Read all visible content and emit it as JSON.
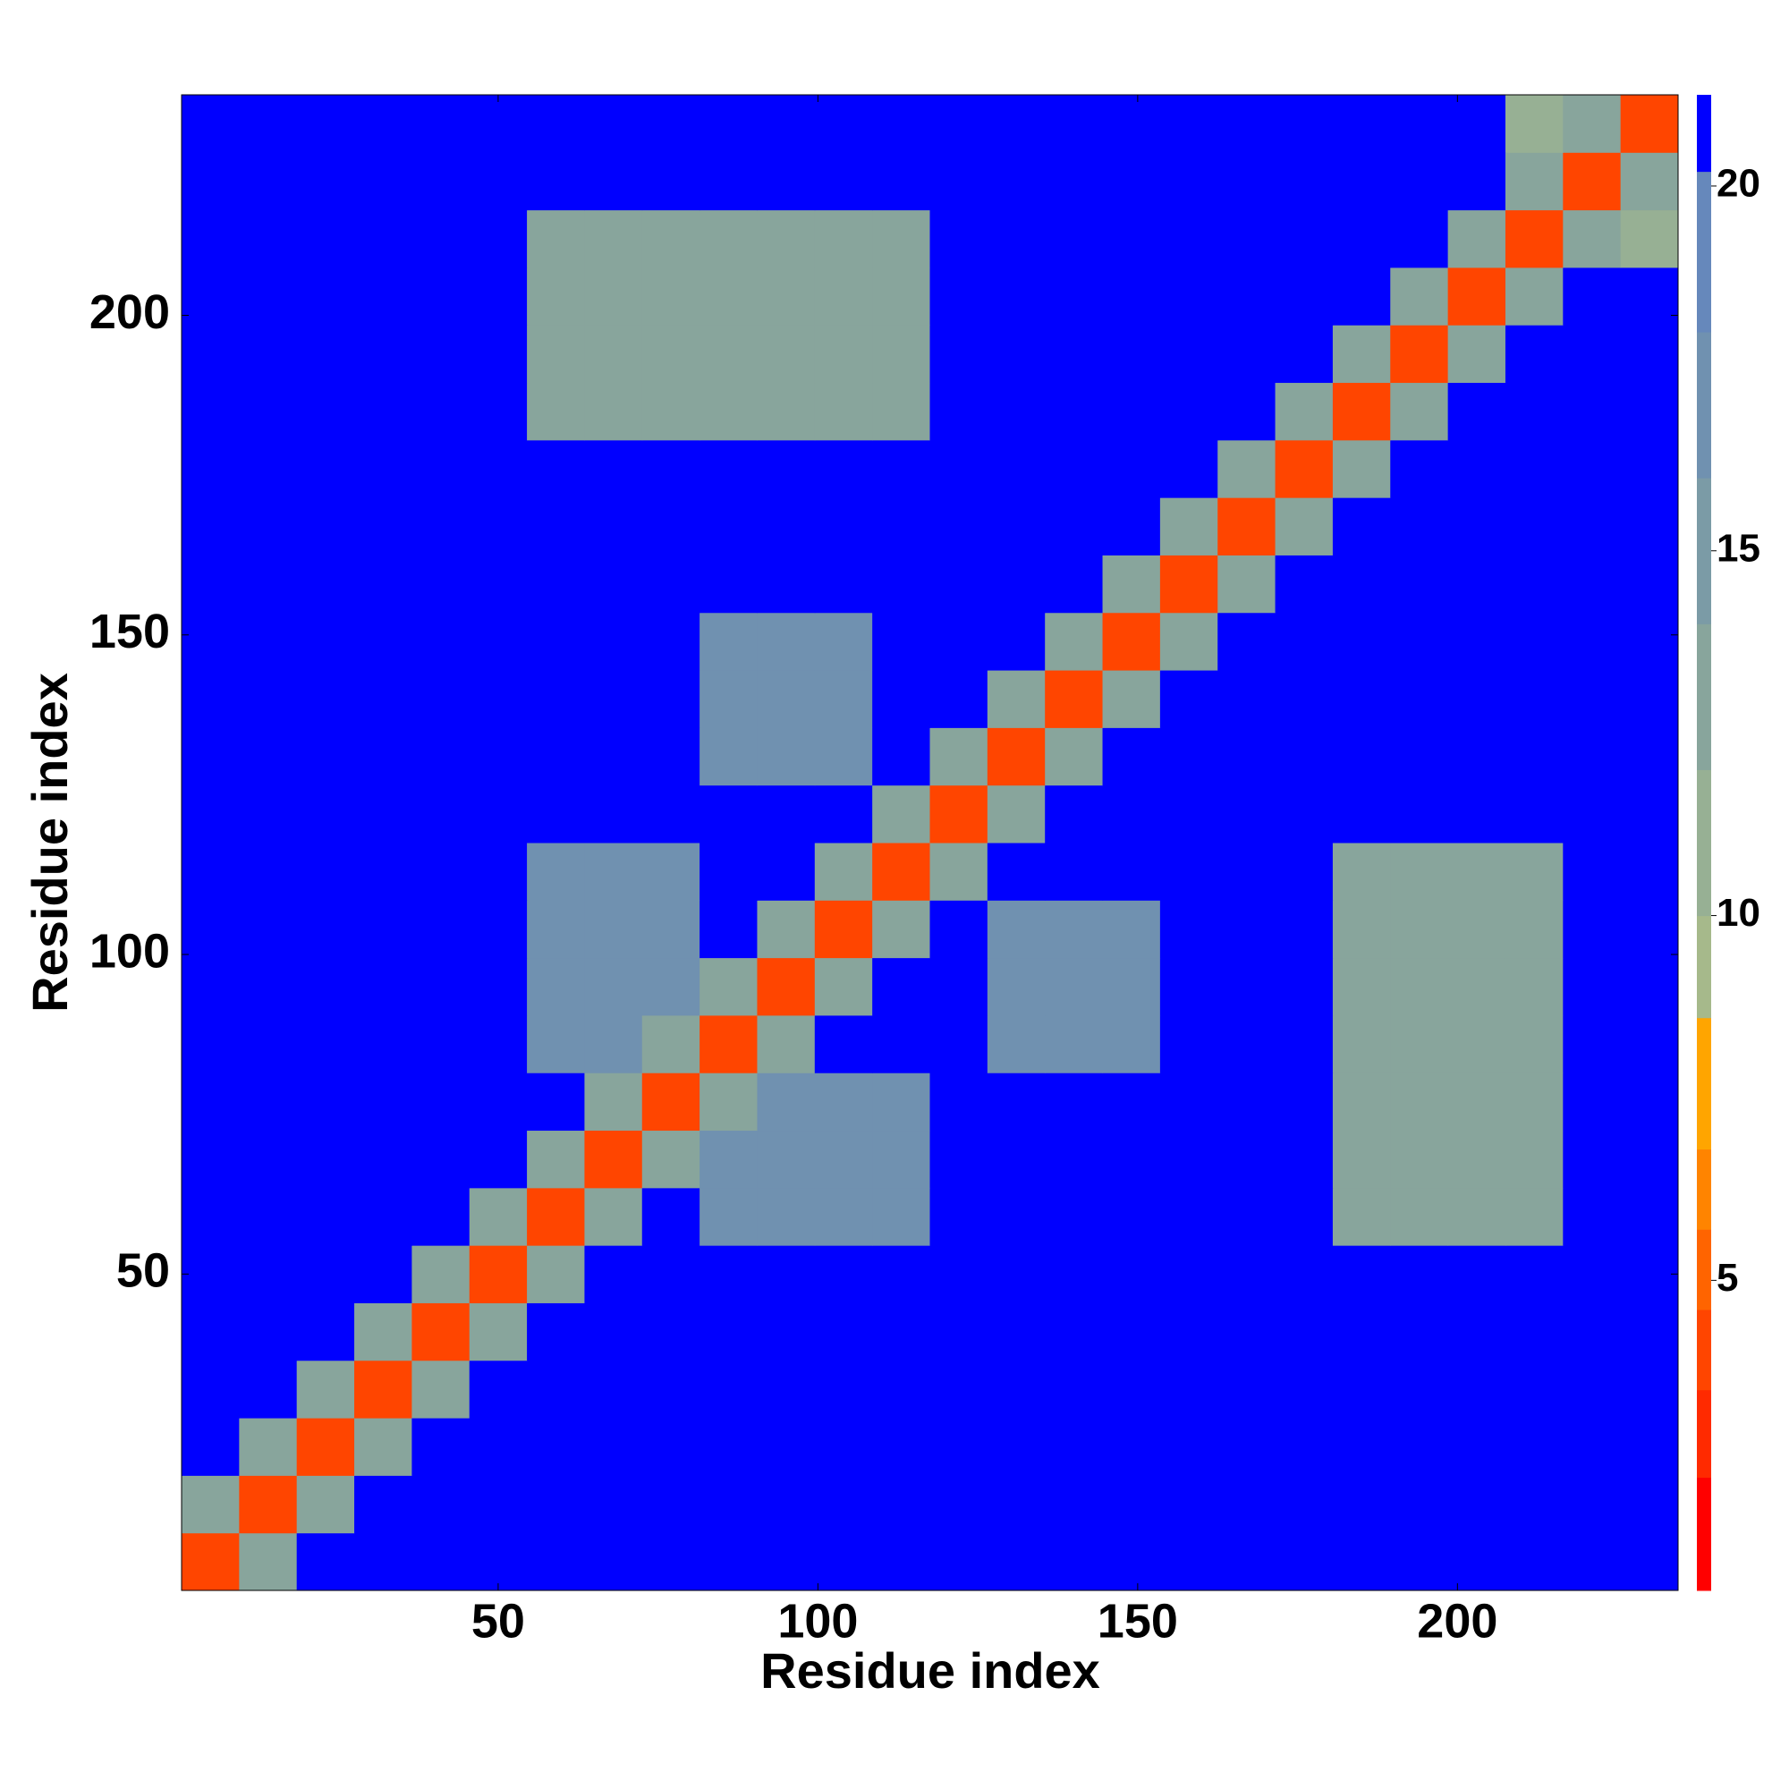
{
  "chart_data": {
    "type": "heatmap",
    "xlabel": "Residue index",
    "ylabel": "Residue index",
    "x": [
      5,
      14,
      23,
      32,
      41,
      50,
      59,
      68,
      77,
      86,
      95,
      104,
      113,
      122,
      131,
      140,
      149,
      158,
      167,
      176,
      185,
      194,
      203,
      212,
      221,
      230
    ],
    "y": [
      5,
      14,
      23,
      32,
      41,
      50,
      59,
      68,
      77,
      86,
      95,
      104,
      113,
      122,
      131,
      140,
      149,
      158,
      167,
      176,
      185,
      194,
      203,
      212,
      221,
      230
    ],
    "z": [
      [
        4,
        13,
        21,
        21,
        21,
        21,
        21,
        21,
        21,
        21,
        21,
        21,
        21,
        21,
        21,
        21,
        21,
        21,
        21,
        21,
        21,
        21,
        21,
        21,
        21,
        21
      ],
      [
        13,
        4,
        13,
        21,
        21,
        21,
        21,
        21,
        21,
        21,
        21,
        21,
        21,
        21,
        21,
        21,
        21,
        21,
        21,
        21,
        21,
        21,
        21,
        21,
        21,
        21
      ],
      [
        21,
        13,
        4,
        13,
        21,
        21,
        21,
        21,
        21,
        21,
        21,
        21,
        21,
        21,
        21,
        21,
        21,
        21,
        21,
        21,
        21,
        21,
        21,
        21,
        21,
        21
      ],
      [
        21,
        21,
        13,
        4,
        13,
        21,
        21,
        21,
        21,
        21,
        21,
        21,
        21,
        21,
        21,
        21,
        21,
        21,
        21,
        21,
        21,
        21,
        21,
        21,
        21,
        21
      ],
      [
        21,
        21,
        21,
        13,
        4,
        13,
        21,
        21,
        21,
        21,
        21,
        21,
        21,
        21,
        21,
        21,
        21,
        21,
        21,
        21,
        21,
        21,
        21,
        21,
        21,
        21
      ],
      [
        21,
        21,
        21,
        21,
        13,
        4,
        13,
        21,
        21,
        21,
        21,
        21,
        21,
        21,
        21,
        21,
        21,
        21,
        21,
        21,
        21,
        21,
        21,
        21,
        21,
        21
      ],
      [
        21,
        21,
        21,
        21,
        21,
        13,
        4,
        13,
        21,
        17,
        17,
        17,
        17,
        21,
        21,
        21,
        21,
        21,
        21,
        21,
        13,
        13,
        13,
        13,
        21,
        21
      ],
      [
        21,
        21,
        21,
        21,
        21,
        21,
        13,
        4,
        13,
        17,
        17,
        17,
        17,
        21,
        21,
        21,
        21,
        21,
        21,
        21,
        13,
        13,
        13,
        13,
        21,
        21
      ],
      [
        21,
        21,
        21,
        21,
        21,
        21,
        21,
        13,
        4,
        13,
        17,
        17,
        17,
        21,
        21,
        21,
        21,
        21,
        21,
        21,
        13,
        13,
        13,
        13,
        21,
        21
      ],
      [
        21,
        21,
        21,
        21,
        21,
        21,
        17,
        17,
        13,
        4,
        13,
        21,
        21,
        21,
        18,
        18,
        18,
        21,
        21,
        21,
        14,
        14,
        14,
        14,
        21,
        21
      ],
      [
        21,
        21,
        21,
        21,
        21,
        21,
        17,
        17,
        17,
        13,
        4,
        13,
        21,
        21,
        18,
        18,
        18,
        21,
        21,
        21,
        14,
        14,
        14,
        14,
        21,
        21
      ],
      [
        21,
        21,
        21,
        21,
        21,
        21,
        17,
        17,
        17,
        21,
        13,
        4,
        13,
        21,
        18,
        18,
        18,
        21,
        21,
        21,
        14,
        14,
        14,
        14,
        21,
        21
      ],
      [
        21,
        21,
        21,
        21,
        21,
        21,
        17,
        17,
        17,
        21,
        21,
        13,
        4,
        13,
        21,
        21,
        21,
        21,
        21,
        21,
        14,
        14,
        14,
        14,
        21,
        21
      ],
      [
        21,
        21,
        21,
        21,
        21,
        21,
        21,
        21,
        21,
        21,
        21,
        21,
        13,
        4,
        13,
        21,
        21,
        21,
        21,
        21,
        21,
        21,
        21,
        21,
        21,
        21
      ],
      [
        21,
        21,
        21,
        21,
        21,
        21,
        21,
        21,
        21,
        18,
        18,
        18,
        21,
        13,
        4,
        13,
        21,
        21,
        21,
        21,
        21,
        21,
        21,
        21,
        21,
        21
      ],
      [
        21,
        21,
        21,
        21,
        21,
        21,
        21,
        21,
        21,
        18,
        18,
        18,
        21,
        21,
        13,
        4,
        13,
        21,
        21,
        21,
        21,
        21,
        21,
        21,
        21,
        21
      ],
      [
        21,
        21,
        21,
        21,
        21,
        21,
        21,
        21,
        21,
        18,
        18,
        18,
        21,
        21,
        21,
        13,
        4,
        13,
        21,
        21,
        21,
        21,
        21,
        21,
        21,
        21
      ],
      [
        21,
        21,
        21,
        21,
        21,
        21,
        21,
        21,
        21,
        21,
        21,
        21,
        21,
        21,
        21,
        21,
        13,
        4,
        13,
        21,
        21,
        21,
        21,
        21,
        21,
        21
      ],
      [
        21,
        21,
        21,
        21,
        21,
        21,
        21,
        21,
        21,
        21,
        21,
        21,
        21,
        21,
        21,
        21,
        21,
        13,
        4,
        13,
        21,
        21,
        21,
        21,
        21,
        21
      ],
      [
        21,
        21,
        21,
        21,
        21,
        21,
        21,
        21,
        21,
        21,
        21,
        21,
        21,
        21,
        21,
        21,
        21,
        21,
        13,
        4,
        13,
        21,
        21,
        21,
        21,
        21
      ],
      [
        21,
        21,
        21,
        21,
        21,
        21,
        13,
        13,
        13,
        14,
        14,
        14,
        14,
        21,
        21,
        21,
        21,
        21,
        21,
        13,
        4,
        13,
        21,
        21,
        21,
        21
      ],
      [
        21,
        21,
        21,
        21,
        21,
        21,
        13,
        13,
        13,
        14,
        14,
        14,
        14,
        21,
        21,
        21,
        21,
        21,
        21,
        21,
        13,
        4,
        13,
        21,
        21,
        21
      ],
      [
        21,
        21,
        21,
        21,
        21,
        21,
        13,
        13,
        13,
        14,
        14,
        14,
        14,
        21,
        21,
        21,
        21,
        21,
        21,
        21,
        21,
        13,
        4,
        13,
        21,
        21
      ],
      [
        21,
        21,
        21,
        21,
        21,
        21,
        13,
        13,
        13,
        14,
        14,
        14,
        14,
        21,
        21,
        21,
        21,
        21,
        21,
        21,
        21,
        21,
        13,
        4,
        13,
        12
      ],
      [
        21,
        21,
        21,
        21,
        21,
        21,
        21,
        21,
        21,
        21,
        21,
        21,
        21,
        21,
        21,
        21,
        21,
        21,
        21,
        21,
        21,
        21,
        21,
        13,
        4,
        13
      ],
      [
        21,
        21,
        21,
        21,
        21,
        21,
        21,
        21,
        21,
        21,
        21,
        21,
        21,
        21,
        21,
        21,
        21,
        21,
        21,
        21,
        21,
        21,
        21,
        12,
        13,
        4
      ]
    ],
    "xlim": [
      0.5,
      234.5
    ],
    "ylim": [
      0.5,
      234.5
    ],
    "xticks": [
      50,
      100,
      150,
      200
    ],
    "yticks": [
      50,
      100,
      150,
      200
    ],
    "zlim": [
      0.75,
      21.25
    ],
    "zticks": [
      5,
      10,
      15,
      20
    ],
    "colorscale": [
      [
        2.3,
        "#ff0000"
      ],
      [
        3.5,
        "#ff2a00"
      ],
      [
        4.6,
        "#ff4500"
      ],
      [
        5.7,
        "#ff6400"
      ],
      [
        6.8,
        "#ff8400"
      ],
      [
        8.6,
        "#ffa500"
      ],
      [
        10,
        "#a6b98b"
      ],
      [
        12,
        "#97b094"
      ],
      [
        14,
        "#88a59c"
      ],
      [
        16,
        "#7b9ba6"
      ],
      [
        18,
        "#7091b0"
      ],
      [
        20.2,
        "#6688bb"
      ],
      [
        21.25,
        "#0000ff"
      ]
    ]
  }
}
